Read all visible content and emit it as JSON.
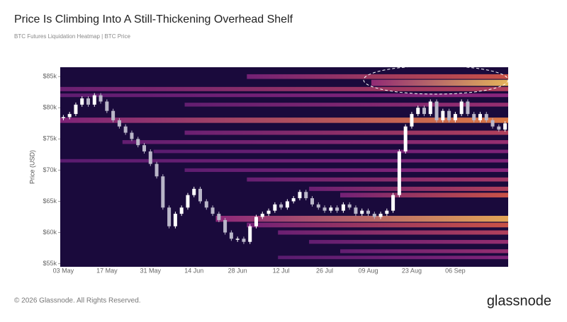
{
  "chart_data": {
    "type": "heatmap-candle",
    "title": "Price Is Climbing Into A Still-Thickening Overhead Shelf",
    "subtitle": "BTC Futures Liquidation Heatmap | BTC Price",
    "y_label": "Price (USD)",
    "categories": [
      "03 May",
      null,
      null,
      null,
      null,
      null,
      null,
      "17 May",
      null,
      null,
      null,
      null,
      null,
      null,
      "31 May",
      null,
      null,
      null,
      null,
      null,
      null,
      "14 Jun",
      null,
      null,
      null,
      null,
      null,
      null,
      "28 Jun",
      null,
      null,
      null,
      null,
      null,
      null,
      "12 Jul",
      null,
      null,
      null,
      null,
      null,
      null,
      "26 Jul",
      null,
      null,
      null,
      null,
      null,
      null,
      "09 Aug",
      null,
      null,
      null,
      null,
      null,
      null,
      "23 Aug",
      null,
      null,
      null,
      null,
      null,
      null,
      "06 Sep",
      null,
      null,
      null,
      null,
      null,
      null,
      null,
      null
    ],
    "values": [
      78500,
      79000,
      80500,
      81500,
      80500,
      82000,
      81000,
      79500,
      78000,
      77000,
      76000,
      75000,
      74000,
      73000,
      71000,
      69000,
      64000,
      61000,
      63000,
      64000,
      66000,
      67000,
      65000,
      64000,
      63000,
      62000,
      60000,
      59000,
      59000,
      58500,
      61000,
      62500,
      63000,
      63500,
      64500,
      64000,
      65000,
      65500,
      66500,
      65500,
      64500,
      64000,
      63500,
      64000,
      63500,
      64500,
      64000,
      63000,
      63500,
      63000,
      62500,
      63000,
      63500,
      66000,
      73000,
      77000,
      79000,
      80000,
      79000,
      81000,
      78000,
      79500,
      78000,
      79000,
      81000,
      79000,
      78000,
      79000,
      78000,
      77000,
      76500,
      77500
    ],
    "color": "#ffffff",
    "down_color": "#b9b6c8",
    "heatmap": {
      "levels": [
        85000,
        84000,
        83000,
        82000,
        80500,
        78000,
        76000,
        74500,
        73000,
        71500,
        70000,
        68500,
        67000,
        66000,
        62200,
        61200,
        60000,
        58500,
        57000,
        56000
      ],
      "start": [
        30,
        50,
        0,
        0,
        20,
        0,
        20,
        10,
        15,
        0,
        20,
        30,
        40,
        45,
        25,
        30,
        35,
        40,
        45,
        35
      ],
      "intensity": [
        0.6,
        0.95,
        0.5,
        0.35,
        0.4,
        0.75,
        0.5,
        0.4,
        0.3,
        0.3,
        0.35,
        0.45,
        0.5,
        0.6,
        0.9,
        0.6,
        0.5,
        0.4,
        0.4,
        0.3
      ]
    },
    "ylim": [
      54500,
      86500
    ],
    "yticks": [
      {
        "value": 55000,
        "label": "$55k"
      },
      {
        "value": 60000,
        "label": "$60k"
      },
      {
        "value": 65000,
        "label": "$65k"
      },
      {
        "value": 70000,
        "label": "$70k"
      },
      {
        "value": 75000,
        "label": "$75k"
      },
      {
        "value": 80000,
        "label": "$80k"
      },
      {
        "value": 85000,
        "label": "$85k"
      }
    ]
  },
  "footer": {
    "copyright": "© 2026 Glassnode. All Rights Reserved.",
    "logo": "glassnode"
  }
}
